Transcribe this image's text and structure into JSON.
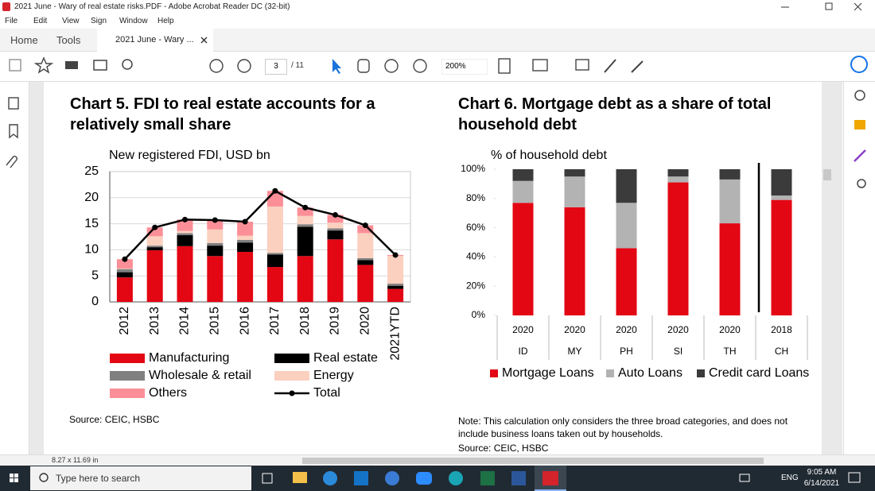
{
  "window": {
    "title": "2021 June - Wary of real estate risks.PDF - Adobe Acrobat Reader DC (32-bit)"
  },
  "menu": [
    "File",
    "Edit",
    "View",
    "Sign",
    "Window",
    "Help"
  ],
  "tabs": [
    "Home",
    "Tools",
    "2021 June - Wary ..."
  ],
  "toolbar": {
    "page": "3",
    "page_count": "/ 11",
    "zoom": "200%"
  },
  "chart_data": [
    {
      "type": "bar",
      "stacked": true,
      "title": "Chart 5. FDI to real estate accounts for a relatively small share",
      "subtitle": "New registered FDI, USD bn",
      "categories": [
        "2012",
        "2013",
        "2014",
        "2015",
        "2016",
        "2017",
        "2018",
        "2019",
        "2020",
        "2021YTD"
      ],
      "series": [
        {
          "name": "Manufacturing",
          "color": "#e30613",
          "values": [
            4.7,
            9.9,
            10.7,
            8.8,
            9.6,
            6.7,
            8.8,
            12.0,
            7.1,
            2.5
          ]
        },
        {
          "name": "Real estate",
          "color": "#000000",
          "values": [
            1.0,
            0.6,
            2.1,
            2.0,
            1.8,
            2.4,
            5.6,
            1.7,
            0.9,
            0.6
          ]
        },
        {
          "name": "Wholesale & retail",
          "color": "#808080",
          "values": [
            0.6,
            0.3,
            0.4,
            0.5,
            0.5,
            0.3,
            0.5,
            0.4,
            0.4,
            0.4
          ]
        },
        {
          "name": "Energy",
          "color": "#fbd0bf",
          "values": [
            0.1,
            1.8,
            0.4,
            2.6,
            0.8,
            8.9,
            1.6,
            1.1,
            4.8,
            5.3
          ]
        },
        {
          "name": "Others",
          "color": "#fb8f98",
          "values": [
            1.8,
            1.7,
            2.2,
            1.8,
            2.7,
            3.0,
            1.6,
            1.5,
            1.5,
            0.2
          ]
        },
        {
          "name": "Total",
          "color": "#000000",
          "type": "line",
          "values": [
            8.2,
            14.3,
            15.8,
            15.7,
            15.4,
            21.3,
            18.1,
            16.7,
            14.7,
            9.0
          ]
        }
      ],
      "ylim": [
        0,
        25
      ],
      "yticks": [
        0,
        5,
        10,
        15,
        20,
        25
      ],
      "grid": true,
      "legend": "bottom"
    },
    {
      "type": "bar",
      "stacked": true,
      "title": "Chart 6. Mortgage debt as a share of total household debt",
      "subtitle": "% of household debt",
      "years": [
        "2020",
        "2020",
        "2020",
        "2020",
        "2020",
        "2018"
      ],
      "categories": [
        "ID",
        "MY",
        "PH",
        "SI",
        "TH",
        "CH"
      ],
      "series": [
        {
          "name": "Mortgage Loans",
          "color": "#e30613",
          "values": [
            77,
            74,
            46,
            91,
            63,
            79
          ]
        },
        {
          "name": "Auto Loans",
          "color": "#b3b3b3",
          "values": [
            15,
            21,
            31,
            4,
            30,
            3
          ]
        },
        {
          "name": "Credit card Loans",
          "color": "#3b3b3b",
          "values": [
            8,
            5,
            23,
            5,
            7,
            18
          ]
        }
      ],
      "ylim": [
        0,
        100
      ],
      "yticks": [
        {
          "value": 0,
          "label": "0%"
        },
        {
          "value": 20,
          "label": "20%"
        },
        {
          "value": 40,
          "label": "40%"
        },
        {
          "value": 60,
          "label": "60%"
        },
        {
          "value": 80,
          "label": "80%"
        },
        {
          "value": 100,
          "label": "100%"
        }
      ],
      "grid": false,
      "legend": "bottom"
    }
  ],
  "notes": {
    "left_source": "Source: CEIC, HSBC",
    "right_note": "Note: This calculation only considers the three broad categories, and does not include business loans taken out by households.",
    "right_source": "Source: CEIC, HSBC"
  },
  "status": {
    "page_size": "8.27 x 11.69 in"
  },
  "taskbar": {
    "search": "Type here to search",
    "language": "ENG",
    "time": "9:05 AM",
    "date": "6/14/2021"
  }
}
